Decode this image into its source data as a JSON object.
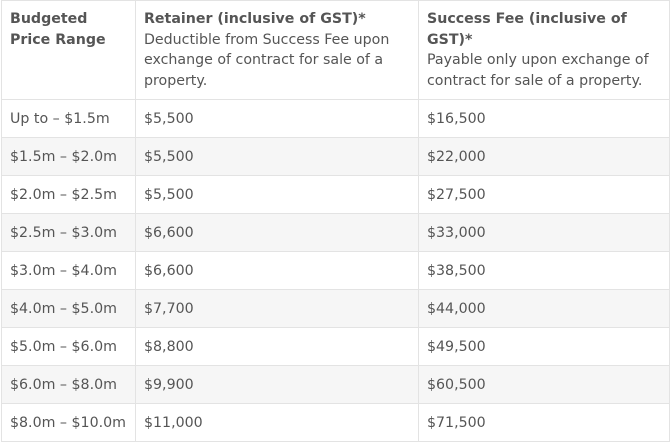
{
  "table": {
    "headers": [
      {
        "title": "Budgeted Price Range",
        "subtitle": ""
      },
      {
        "title": "Retainer (inclusive of GST)*",
        "subtitle": "Deductible from Success Fee upon exchange of contract for sale of a property."
      },
      {
        "title": "Success Fee (inclusive of GST)*",
        "subtitle": "Payable only upon exchange of contract for sale of a property."
      }
    ],
    "rows": [
      [
        "Up to – $1.5m",
        "$5,500",
        "$16,500"
      ],
      [
        "$1.5m – $2.0m",
        "$5,500",
        "$22,000"
      ],
      [
        "$2.0m – $2.5m",
        "$5,500",
        "$27,500"
      ],
      [
        "$2.5m – $3.0m",
        "$6,600",
        "$33,000"
      ],
      [
        "$3.0m – $4.0m",
        "$6,600",
        "$38,500"
      ],
      [
        "$4.0m – $5.0m",
        "$7,700",
        "$44,000"
      ],
      [
        "$5.0m – $6.0m",
        "$8,800",
        "$49,500"
      ],
      [
        "$6.0m – $8.0m",
        "$9,900",
        "$60,500"
      ],
      [
        "$8.0m – $10.0m",
        "$11,000",
        "$71,500"
      ]
    ]
  },
  "colors": {
    "text": "#555555",
    "border": "#e3e3e3",
    "stripe": "#f6f6f6"
  }
}
